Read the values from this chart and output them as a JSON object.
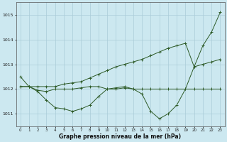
{
  "xlabel": "Graphe pression niveau de la mer (hPa)",
  "background_color": "#cce8f0",
  "grid_color": "#aaccd8",
  "line_color": "#2d5a27",
  "line1": [
    1012.5,
    1012.1,
    1011.9,
    1011.55,
    1011.25,
    1011.2,
    1011.1,
    1011.2,
    1011.35,
    1011.7,
    1012.0,
    1012.05,
    1012.1,
    1012.0,
    1011.8,
    1011.1,
    1010.8,
    1011.0,
    1011.35,
    1012.0,
    1012.9,
    1013.75,
    1014.3,
    1015.1
  ],
  "line2": [
    1012.1,
    1012.1,
    1011.95,
    1011.9,
    1012.0,
    1012.0,
    1012.0,
    1012.05,
    1012.1,
    1012.1,
    1012.0,
    1012.0,
    1012.05,
    1012.0,
    1012.0,
    1012.0,
    1012.0,
    1012.0,
    1012.0,
    1012.0,
    1012.0,
    1012.0,
    1012.0,
    1012.0
  ],
  "line3": [
    1012.1,
    1012.1,
    1012.1,
    1012.1,
    1012.1,
    1012.2,
    1012.25,
    1012.3,
    1012.45,
    1012.6,
    1012.75,
    1012.9,
    1013.0,
    1013.1,
    1013.2,
    1013.35,
    1013.5,
    1013.65,
    1013.75,
    1013.85,
    1012.9,
    1013.0,
    1013.1,
    1013.2
  ],
  "x_ticks": [
    0,
    1,
    2,
    3,
    4,
    5,
    6,
    7,
    8,
    9,
    10,
    11,
    12,
    13,
    14,
    15,
    16,
    17,
    18,
    19,
    20,
    21,
    22,
    23
  ],
  "y_ticks": [
    1011,
    1012,
    1013,
    1014,
    1015
  ],
  "ylim": [
    1010.5,
    1015.5
  ],
  "xlim": [
    -0.5,
    23.5
  ],
  "figsize": [
    3.2,
    2.0
  ],
  "dpi": 100
}
